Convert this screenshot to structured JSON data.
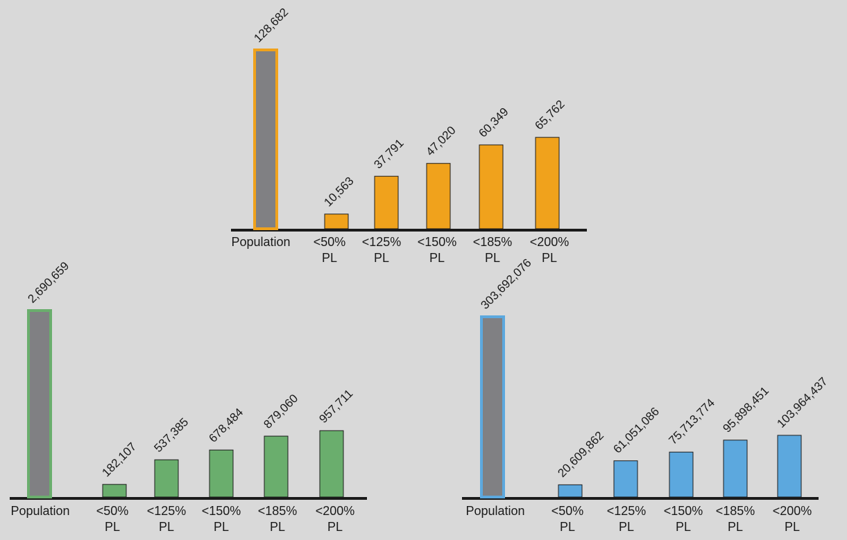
{
  "chart_data": [
    {
      "type": "bar",
      "categories": [
        "Population",
        "<50%\nPL",
        "<125%\nPL",
        "<150%\nPL",
        "<185%\nPL",
        "<200%\nPL"
      ],
      "values": [
        128682,
        10563,
        37791,
        47020,
        60349,
        65762
      ],
      "labels": [
        "128,682",
        "10,563",
        "37,791",
        "47,020",
        "60,349",
        "65,762"
      ],
      "colors": {
        "population_fill": "#808083",
        "population_border": "#f0a21c",
        "bar": "#f0a21c"
      }
    },
    {
      "type": "bar",
      "categories": [
        "Population",
        "<50%\nPL",
        "<125%\nPL",
        "<150%\nPL",
        "<185%\nPL",
        "<200%\nPL"
      ],
      "values": [
        2690659,
        182107,
        537385,
        678484,
        879060,
        957711
      ],
      "labels": [
        "2,690,659",
        "182,107",
        "537,385",
        "678,484",
        "879,060",
        "957,711"
      ],
      "colors": {
        "population_fill": "#808083",
        "population_border": "#6aae6d",
        "bar": "#6aae6d"
      }
    },
    {
      "type": "bar",
      "categories": [
        "Population",
        "<50%\nPL",
        "<125%\nPL",
        "<150%\nPL",
        "<185%\nPL",
        "<200%\nPL"
      ],
      "values": [
        303692076,
        20609862,
        61051086,
        75713774,
        95898451,
        103964437
      ],
      "labels": [
        "303,692,076",
        "20,609,862",
        "61,051,086",
        "75,713,774",
        "95,898,451",
        "103,964,437"
      ],
      "colors": {
        "population_fill": "#808083",
        "population_border": "#5ca8de",
        "bar": "#5ca8de"
      }
    }
  ]
}
